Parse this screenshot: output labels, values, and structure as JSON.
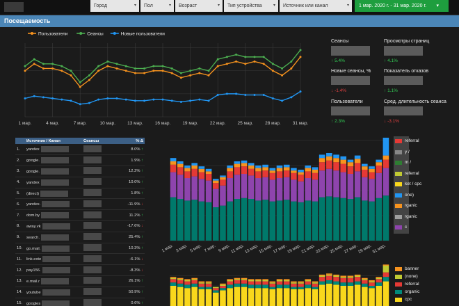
{
  "filters": [
    {
      "label": "Город"
    },
    {
      "label": "Пол"
    },
    {
      "label": "Возраст"
    },
    {
      "label": "Тип устройства"
    },
    {
      "label": "Источник или канал"
    }
  ],
  "date_range": "1 мар. 2020 г. - 31 мар. 2020 г.",
  "section_title": "Посещаемость",
  "colors": {
    "users": "#f7931e",
    "sessions": "#4caf50",
    "new_users": "#2196f3",
    "accent": "#4b86b7",
    "date_btn": "#1e9e3e"
  },
  "kpis": [
    {
      "label": "Сеансы",
      "delta": "5.4%",
      "dir": "up"
    },
    {
      "label": "Просмотры страниц",
      "delta": "4.1%",
      "dir": "up"
    },
    {
      "label": "Новые сеансы, %",
      "delta": "-1.4%",
      "dir": "down"
    },
    {
      "label": "Показатель отказов",
      "delta": "1.1%",
      "dir": "up"
    },
    {
      "label": "Пользователи",
      "delta": "2.3%",
      "dir": "up"
    },
    {
      "label": "Сред. длительность сеанса",
      "delta": "-3.1%",
      "dir": "down"
    }
  ],
  "table": {
    "headers": [
      "Источник / Канал",
      "Сеансы",
      "% Δ"
    ],
    "rows": [
      {
        "n": "1.",
        "src": "yandex",
        "delta": "8.0%",
        "dir": "up"
      },
      {
        "n": "2.",
        "src": "google.",
        "delta": "1.9%",
        "dir": "up"
      },
      {
        "n": "3.",
        "src": "google.",
        "delta": "12.2%",
        "dir": "up"
      },
      {
        "n": "4.",
        "src": "yandex",
        "delta": "10.0%",
        "dir": "up"
      },
      {
        "n": "5.",
        "src": "(direct)",
        "delta": "1.8%",
        "dir": "up"
      },
      {
        "n": "6.",
        "src": "yandex.",
        "delta": "-11.9%",
        "dir": "down"
      },
      {
        "n": "7.",
        "src": "dom.by",
        "delta": "11.2%",
        "dir": "up"
      },
      {
        "n": "8.",
        "src": "away.vk",
        "delta": "-17.6%",
        "dir": "down"
      },
      {
        "n": "9.",
        "src": "search.",
        "delta": "25.4%",
        "dir": "up"
      },
      {
        "n": "10.",
        "src": "go.mail.",
        "delta": "10.3%",
        "dir": "up"
      },
      {
        "n": "11.",
        "src": "link.exte",
        "delta": "-6.1%",
        "dir": "down"
      },
      {
        "n": "12.",
        "src": "pay156.",
        "delta": "-8.3%",
        "dir": "down"
      },
      {
        "n": "13.",
        "src": "e.mail.r",
        "delta": "26.1%",
        "dir": "up"
      },
      {
        "n": "14.",
        "src": "youtube",
        "delta": "50.9%",
        "dir": "up"
      },
      {
        "n": "15.",
        "src": "googles",
        "delta": "0.6%",
        "dir": "up"
      }
    ]
  },
  "stack_legend_top": [
    {
      "label": "referral",
      "color": "#e53935"
    },
    {
      "label": "y /",
      "color": "#888888"
    },
    {
      "label": "m /",
      "color": "#2e7d32"
    },
    {
      "label": "referral",
      "color": "#c0ca33"
    },
    {
      "label": "ket / cpc",
      "color": "#f9d71c"
    },
    {
      "label": "one)",
      "color": "#2196f3"
    },
    {
      "label": "rganic",
      "color": "#f7931e"
    },
    {
      "label": "rganic",
      "color": "#9e9e9e"
    },
    {
      "label": "c",
      "color": "#8e44ad"
    }
  ],
  "stack_legend_bottom": [
    {
      "label": "banner",
      "color": "#f7931e"
    },
    {
      "label": "(none)",
      "color": "#c0ca33"
    },
    {
      "label": "referral",
      "color": "#e53935"
    },
    {
      "label": "organic",
      "color": "#00897b"
    },
    {
      "label": "cpc",
      "color": "#f9d71c"
    }
  ],
  "chart_data": [
    {
      "type": "line",
      "x": [
        "1 мар.",
        "2 мар.",
        "3 мар.",
        "4 мар.",
        "5 мар.",
        "6 мар.",
        "7 мар.",
        "8 мар.",
        "9 мар.",
        "10 мар.",
        "11 мар.",
        "12 мар.",
        "13 мар.",
        "14 мар.",
        "15 мар.",
        "16 мар.",
        "17 мар.",
        "18 мар.",
        "19 мар.",
        "20 мар.",
        "21 мар.",
        "22 мар.",
        "23 мар.",
        "24 мар.",
        "25 мар.",
        "26 мар.",
        "27 мар.",
        "28 мар.",
        "29 мар.",
        "30 мар.",
        "31 мар."
      ],
      "xticks": [
        "1 мар.",
        "4 мар.",
        "7 мар.",
        "10 мар.",
        "13 мар.",
        "16 мар.",
        "19 мар.",
        "22 мар.",
        "25 мар.",
        "28 мар.",
        "31 мар."
      ],
      "series": [
        {
          "name": "Пользователи",
          "color": "#f7931e",
          "values": [
            2.0,
            2.3,
            2.1,
            2.1,
            2.0,
            1.8,
            1.3,
            1.6,
            2.0,
            2.2,
            2.1,
            2.0,
            1.9,
            1.9,
            2.0,
            2.0,
            1.9,
            1.7,
            1.8,
            1.9,
            1.8,
            2.2,
            2.3,
            2.4,
            2.3,
            2.4,
            2.3,
            2.0,
            1.8,
            2.1,
            2.6
          ]
        },
        {
          "name": "Сеансы",
          "color": "#4caf50",
          "values": [
            2.2,
            2.5,
            2.3,
            2.3,
            2.2,
            2.0,
            1.5,
            1.8,
            2.2,
            2.4,
            2.3,
            2.2,
            2.1,
            2.1,
            2.2,
            2.2,
            2.1,
            1.9,
            2.0,
            2.1,
            2.0,
            2.5,
            2.6,
            2.7,
            2.6,
            2.6,
            2.6,
            2.3,
            2.1,
            2.4,
            2.9
          ]
        },
        {
          "name": "Новые пользователи",
          "color": "#2196f3",
          "values": [
            0.8,
            0.9,
            0.85,
            0.8,
            0.75,
            0.7,
            0.55,
            0.6,
            0.75,
            0.8,
            0.8,
            0.75,
            0.7,
            0.7,
            0.75,
            0.75,
            0.7,
            0.65,
            0.7,
            0.75,
            0.7,
            0.95,
            1.0,
            1.0,
            0.95,
            0.95,
            0.95,
            0.8,
            0.7,
            0.85,
            1.1
          ]
        }
      ],
      "legend": "top-left"
    },
    {
      "type": "bar",
      "stacked": true,
      "xticks": [
        "1 мар.",
        "3 мар.",
        "5 мар.",
        "7 мар.",
        "9 мар.",
        "11 мар.",
        "13 мар.",
        "15 мар.",
        "17 мар.",
        "19 мар.",
        "21 мар.",
        "23 мар.",
        "25 мар.",
        "27 мар.",
        "29 мар.",
        "31 мар."
      ],
      "series": [
        {
          "name": "green",
          "color": "#00796b",
          "values": [
            52,
            50,
            48,
            49,
            47,
            46,
            40,
            42,
            47,
            50,
            51,
            50,
            48,
            49,
            47,
            48,
            49,
            47,
            46,
            48,
            47,
            52,
            53,
            52,
            51,
            50,
            52,
            48,
            47,
            51,
            54
          ]
        },
        {
          "name": "purple",
          "color": "#8e44ad",
          "values": [
            30,
            29,
            27,
            28,
            27,
            26,
            22,
            24,
            28,
            29,
            29,
            28,
            27,
            27,
            26,
            27,
            27,
            26,
            25,
            27,
            26,
            32,
            33,
            32,
            31,
            30,
            31,
            28,
            27,
            30,
            33
          ]
        },
        {
          "name": "red",
          "color": "#e53935",
          "values": [
            9,
            9,
            8,
            9,
            8,
            8,
            7,
            7,
            8,
            9,
            9,
            8,
            8,
            8,
            8,
            8,
            8,
            8,
            8,
            8,
            8,
            10,
            10,
            10,
            10,
            9,
            10,
            9,
            8,
            9,
            10
          ]
        },
        {
          "name": "orange",
          "color": "#f7931e",
          "values": [
            4,
            4,
            4,
            4,
            4,
            3,
            3,
            3,
            4,
            4,
            4,
            4,
            4,
            4,
            3,
            4,
            4,
            3,
            3,
            4,
            4,
            5,
            5,
            5,
            5,
            5,
            5,
            4,
            4,
            4,
            5
          ]
        },
        {
          "name": "blue",
          "color": "#2196f3",
          "values": [
            4,
            3,
            3,
            3,
            3,
            3,
            2,
            2,
            3,
            3,
            3,
            3,
            3,
            3,
            3,
            3,
            3,
            3,
            3,
            3,
            3,
            4,
            4,
            4,
            4,
            3,
            4,
            3,
            3,
            3,
            22
          ]
        }
      ]
    },
    {
      "type": "bar",
      "stacked": true,
      "series": [
        {
          "name": "cpc",
          "color": "#f9d71c",
          "values": [
            18,
            17,
            16,
            17,
            15,
            15,
            12,
            14,
            16,
            17,
            17,
            16,
            16,
            16,
            15,
            16,
            16,
            15,
            15,
            16,
            15,
            19,
            20,
            19,
            18,
            18,
            19,
            17,
            16,
            18,
            22
          ]
        },
        {
          "name": "organic",
          "color": "#00897b",
          "values": [
            3,
            3,
            3,
            3,
            2,
            2,
            2,
            2,
            3,
            3,
            3,
            3,
            3,
            3,
            2,
            3,
            3,
            2,
            2,
            3,
            2,
            3,
            3,
            3,
            3,
            3,
            3,
            3,
            2,
            3,
            4
          ]
        },
        {
          "name": "referral",
          "color": "#e53935",
          "values": [
            3,
            3,
            3,
            3,
            3,
            3,
            2,
            2,
            3,
            3,
            3,
            3,
            3,
            3,
            3,
            3,
            3,
            3,
            3,
            3,
            3,
            4,
            4,
            4,
            4,
            4,
            4,
            3,
            3,
            3,
            4
          ]
        },
        {
          "name": "(none)",
          "color": "#c0ca33",
          "values": [
            1,
            1,
            1,
            1,
            1,
            1,
            1,
            1,
            1,
            1,
            1,
            1,
            1,
            1,
            1,
            1,
            1,
            1,
            1,
            1,
            1,
            1,
            1,
            1,
            1,
            1,
            1,
            1,
            1,
            1,
            6
          ]
        },
        {
          "name": "banner",
          "color": "#f7931e",
          "values": [
            1,
            1,
            1,
            1,
            1,
            1,
            0,
            1,
            1,
            1,
            1,
            1,
            1,
            1,
            1,
            1,
            1,
            1,
            1,
            1,
            1,
            1,
            1,
            1,
            1,
            1,
            1,
            1,
            1,
            1,
            1
          ]
        }
      ]
    }
  ]
}
